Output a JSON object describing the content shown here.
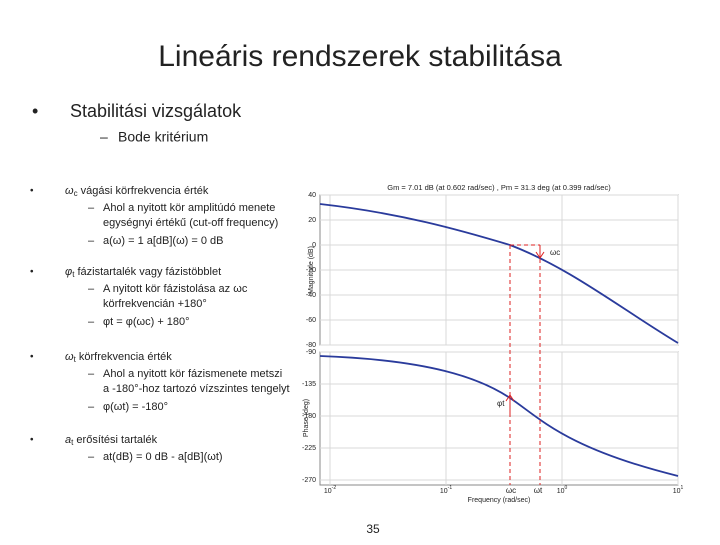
{
  "slide": {
    "title": "Lineáris rendszerek stabilitása",
    "bullet": "Stabilitási vizsgálatok",
    "sub_bullet": "Bode kritérium",
    "points": [
      {
        "symbol": "ω",
        "sub": "c",
        "text": " vágási körfrekvencia érték",
        "items": [
          [
            "Ahol a nyitott kör amplitúdó menete",
            "egységnyi értékű (cut-off frequency)"
          ],
          [
            "a(ω) = 1      a[dB](ω) = 0 dB"
          ]
        ]
      },
      {
        "symbol": "φ",
        "sub": "t",
        "text": " fázistartalék vagy fázistöbblet",
        "items": [
          [
            "A nyitott kör fázistolása az ωc",
            "körfrekvencián +180°"
          ],
          [
            "φt = φ(ωc) + 180°"
          ]
        ]
      },
      {
        "symbol": "ω",
        "sub": "t",
        "text": " körfrekvencia érték",
        "items": [
          [
            "Ahol a nyitott kör fázismenete metszi",
            "a -180°-hoz tartozó vízszintes tengelyt"
          ],
          [
            "φ(ωt) = -180°"
          ]
        ]
      },
      {
        "symbol": "a",
        "sub": "t",
        "text": " erősítési tartalék",
        "items": [
          [
            "at(dB) = 0 dB - a[dB](ωt)"
          ]
        ]
      }
    ],
    "page_number": "35"
  },
  "bode": {
    "title": "Gm = 7.01 dB (at 0.602 rad/sec) ,  Pm = 31.3 deg (at 0.399 rad/sec)",
    "magnitude_label": "Magnitude (dB)",
    "phase_label": "Phase (deg)",
    "x_label": "Frequency  (rad/sec)",
    "magnitude_ticks": [
      "40",
      "20",
      "0",
      "-20",
      "-40",
      "-60",
      "-80"
    ],
    "phase_ticks": [
      "-90",
      "-135",
      "-180",
      "-225",
      "-270"
    ],
    "x_ticks": [
      {
        "base": "10",
        "exp": "-2"
      },
      {
        "base": "10",
        "exp": "-1"
      },
      {
        "base": "10",
        "exp": "0"
      },
      {
        "base": "10",
        "exp": "1"
      }
    ],
    "annotations": {
      "wc_top": "ωc",
      "phi_t": "φt",
      "wc_bottom": "ωc",
      "wt_bottom": "ωt"
    }
  }
}
